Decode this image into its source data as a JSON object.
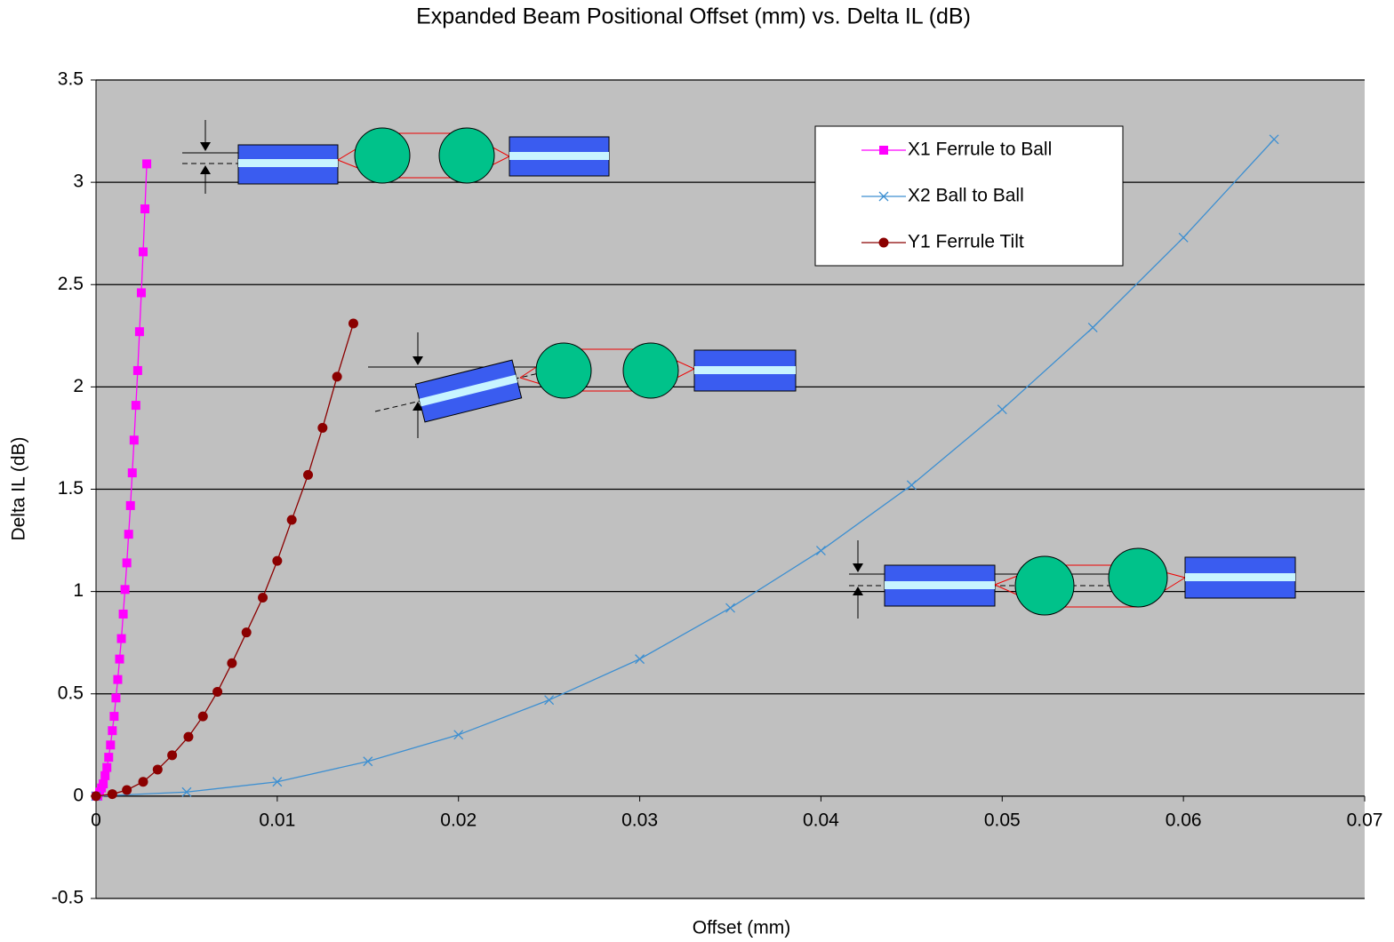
{
  "chart_data": {
    "type": "line",
    "title": "Expanded Beam Positional Offset (mm) vs. Delta IL (dB)",
    "x_label": "Offset (mm)",
    "y_label": "Delta IL (dB)",
    "xlim": [
      0,
      0.07
    ],
    "ylim": [
      -0.5,
      3.5
    ],
    "xticks": [
      0,
      0.01,
      0.02,
      0.03,
      0.04,
      0.05,
      0.06,
      0.07
    ],
    "yticks": [
      -0.5,
      0,
      0.5,
      1,
      1.5,
      2,
      2.5,
      3,
      3.5
    ],
    "grid": true,
    "legend": "upper right",
    "plot_background": "#c0c0c0",
    "series": [
      {
        "name": "X1 Ferrule to Ball",
        "color": "#ff00ff",
        "marker": "square",
        "x": [
          0,
          0.0001,
          0.0002,
          0.0003,
          0.0004,
          0.0005,
          0.0006,
          0.0007,
          0.0008,
          0.0009,
          0.001,
          0.0011,
          0.0012,
          0.0013,
          0.0014,
          0.0015,
          0.0016,
          0.0017,
          0.0018,
          0.0019,
          0.002,
          0.0021,
          0.0022,
          0.0023,
          0.0024,
          0.0025,
          0.0026,
          0.0027,
          0.0028
        ],
        "values": [
          0,
          0.0,
          0.02,
          0.04,
          0.06,
          0.1,
          0.14,
          0.19,
          0.25,
          0.32,
          0.39,
          0.48,
          0.57,
          0.67,
          0.77,
          0.89,
          1.01,
          1.14,
          1.28,
          1.42,
          1.58,
          1.74,
          1.91,
          2.08,
          2.27,
          2.46,
          2.66,
          2.87,
          3.09
        ]
      },
      {
        "name": "X2 Ball to Ball",
        "color": "#3d8fd1",
        "marker": "x",
        "x": [
          0,
          0.005,
          0.01,
          0.015,
          0.02,
          0.025,
          0.03,
          0.035,
          0.04,
          0.045,
          0.05,
          0.055,
          0.06,
          0.065
        ],
        "values": [
          0,
          0.02,
          0.07,
          0.17,
          0.3,
          0.47,
          0.67,
          0.92,
          1.2,
          1.52,
          1.89,
          2.29,
          2.73,
          3.21
        ]
      },
      {
        "name": "Y1 Ferrule Tilt",
        "color": "#8b0000",
        "marker": "circle",
        "x": [
          0,
          0.0009,
          0.0017,
          0.0026,
          0.0034,
          0.0042,
          0.0051,
          0.0059,
          0.0067,
          0.0075,
          0.0083,
          0.0092,
          0.01,
          0.0108,
          0.0117,
          0.0125,
          0.0133,
          0.0142
        ],
        "values": [
          0,
          0.01,
          0.03,
          0.07,
          0.13,
          0.2,
          0.29,
          0.39,
          0.51,
          0.65,
          0.8,
          0.97,
          1.15,
          1.35,
          1.57,
          1.8,
          2.05,
          2.31
        ]
      }
    ]
  }
}
